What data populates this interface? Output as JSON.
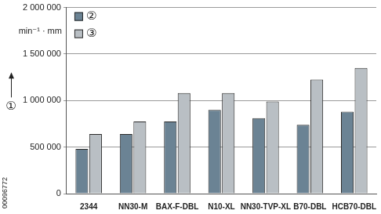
{
  "chart_data": {
    "type": "bar",
    "y_label": "①",
    "annotations": [
      "min⁻¹ · mm",
      "00096772"
    ],
    "categories": [
      "2344",
      "NN30-M",
      "BAX-F-DBL",
      "N10-XL",
      "NN30-TVP-XL",
      "B70-DBL",
      "HCB70-DBL"
    ],
    "series": [
      {
        "name": "②",
        "color": "#6b8394",
        "values": [
          480000,
          640000,
          775000,
          900000,
          810000,
          740000,
          880000
        ]
      },
      {
        "name": "③",
        "color": "#b9bfc4",
        "values": [
          640000,
          775000,
          1080000,
          1080000,
          990000,
          1225000,
          1350000
        ]
      }
    ],
    "ylim": [
      0,
      2000000
    ],
    "yticks": [
      0,
      {
        "value": 500000,
        "label": "500 000"
      },
      {
        "value": 1000000,
        "label": "1 000 000"
      },
      {
        "value": 1500000,
        "label": "1 500 000"
      },
      {
        "value": 2000000,
        "label": "2 000 000"
      }
    ],
    "grid": true,
    "legend": "upper left"
  }
}
